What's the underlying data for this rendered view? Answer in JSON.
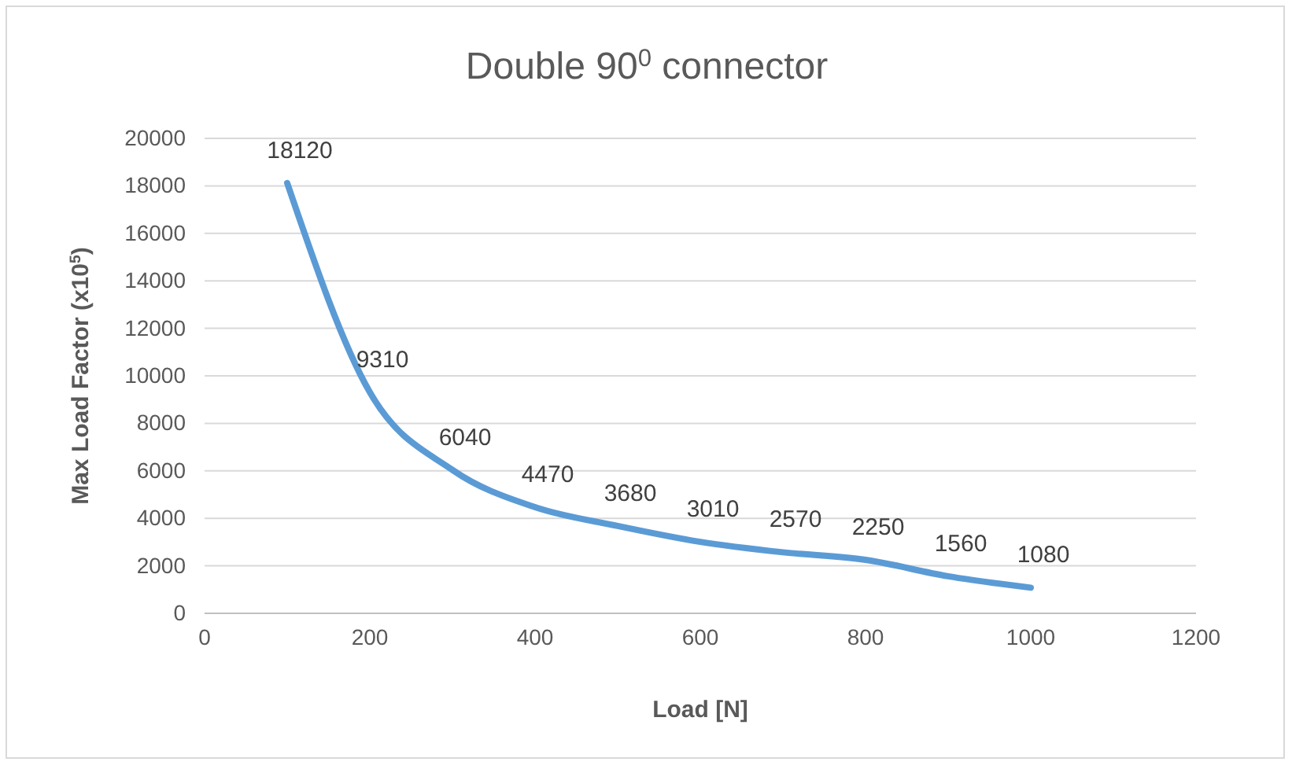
{
  "chart_data": {
    "type": "line",
    "title": "Double 90$^{0}$ connector",
    "xlabel": "Load [N]",
    "ylabel": "Max Load Factor (x10$^{5}$)",
    "x": [
      100,
      200,
      300,
      400,
      500,
      600,
      700,
      800,
      900,
      1000
    ],
    "series": [
      {
        "color": "#5b9bd5",
        "values": [
          18120,
          9310,
          6040,
          4470,
          3680,
          3010,
          2570,
          2250,
          1560,
          1080
        ]
      }
    ],
    "xlim": [
      0,
      1200
    ],
    "xticks": [
      0,
      200,
      400,
      600,
      800,
      1000,
      1200
    ],
    "ylim": [
      0,
      20000
    ],
    "yticks": [
      0,
      2000,
      4000,
      6000,
      8000,
      10000,
      12000,
      14000,
      16000,
      18000,
      20000
    ],
    "grid": "y",
    "data_labels": true,
    "marker": "none",
    "line_style": "solid"
  }
}
